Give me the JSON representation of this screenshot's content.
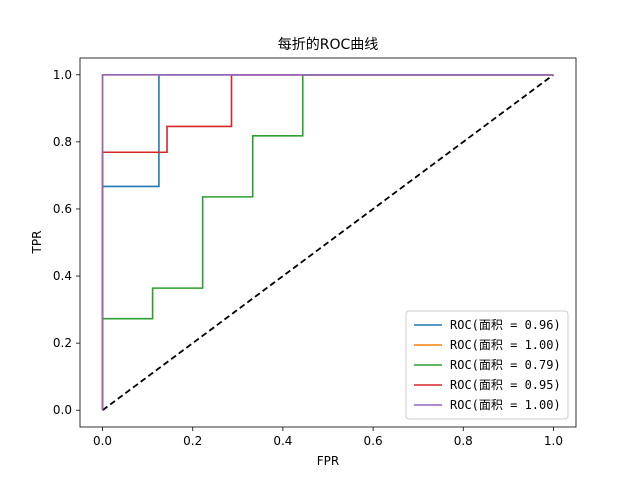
{
  "chart_data": {
    "type": "line",
    "title": "每折的ROC曲线",
    "xlabel": "FPR",
    "ylabel": "TPR",
    "xlim": [
      -0.05,
      1.05
    ],
    "ylim": [
      -0.05,
      1.05
    ],
    "xticks": [
      "0.0",
      "0.2",
      "0.4",
      "0.6",
      "0.8",
      "1.0"
    ],
    "yticks": [
      "0.0",
      "0.2",
      "0.4",
      "0.6",
      "0.8",
      "1.0"
    ],
    "grid": false,
    "legend_position": "lower-right",
    "series": [
      {
        "name": "ROC(面积 = 0.96)",
        "color": "#1f77b4",
        "x": [
          0,
          0,
          0.125,
          0.125,
          1.0
        ],
        "y": [
          0,
          0.667,
          0.667,
          1.0,
          1.0
        ]
      },
      {
        "name": "ROC(面积 = 1.00)",
        "color": "#ff7f0e",
        "x": [
          0,
          0,
          1.0
        ],
        "y": [
          0,
          1.0,
          1.0
        ]
      },
      {
        "name": "ROC(面积 = 0.79)",
        "color": "#2ca02c",
        "x": [
          0,
          0,
          0.111,
          0.111,
          0.222,
          0.222,
          0.333,
          0.333,
          0.444,
          0.444,
          1.0
        ],
        "y": [
          0,
          0.273,
          0.273,
          0.364,
          0.364,
          0.636,
          0.636,
          0.818,
          0.818,
          1.0,
          1.0
        ]
      },
      {
        "name": "ROC(面积 = 0.95)",
        "color": "#d62728",
        "x": [
          0,
          0,
          0.143,
          0.143,
          0.286,
          0.286,
          1.0
        ],
        "y": [
          0,
          0.769,
          0.769,
          0.846,
          0.846,
          1.0,
          1.0
        ]
      },
      {
        "name": "ROC(面积 = 1.00)",
        "color": "#9467bd",
        "x": [
          0,
          0,
          1.0
        ],
        "y": [
          0,
          1.0,
          1.0
        ]
      }
    ],
    "reference_line": {
      "x": [
        0,
        1
      ],
      "y": [
        0,
        1
      ],
      "color": "#000000",
      "style": "dashed"
    }
  }
}
